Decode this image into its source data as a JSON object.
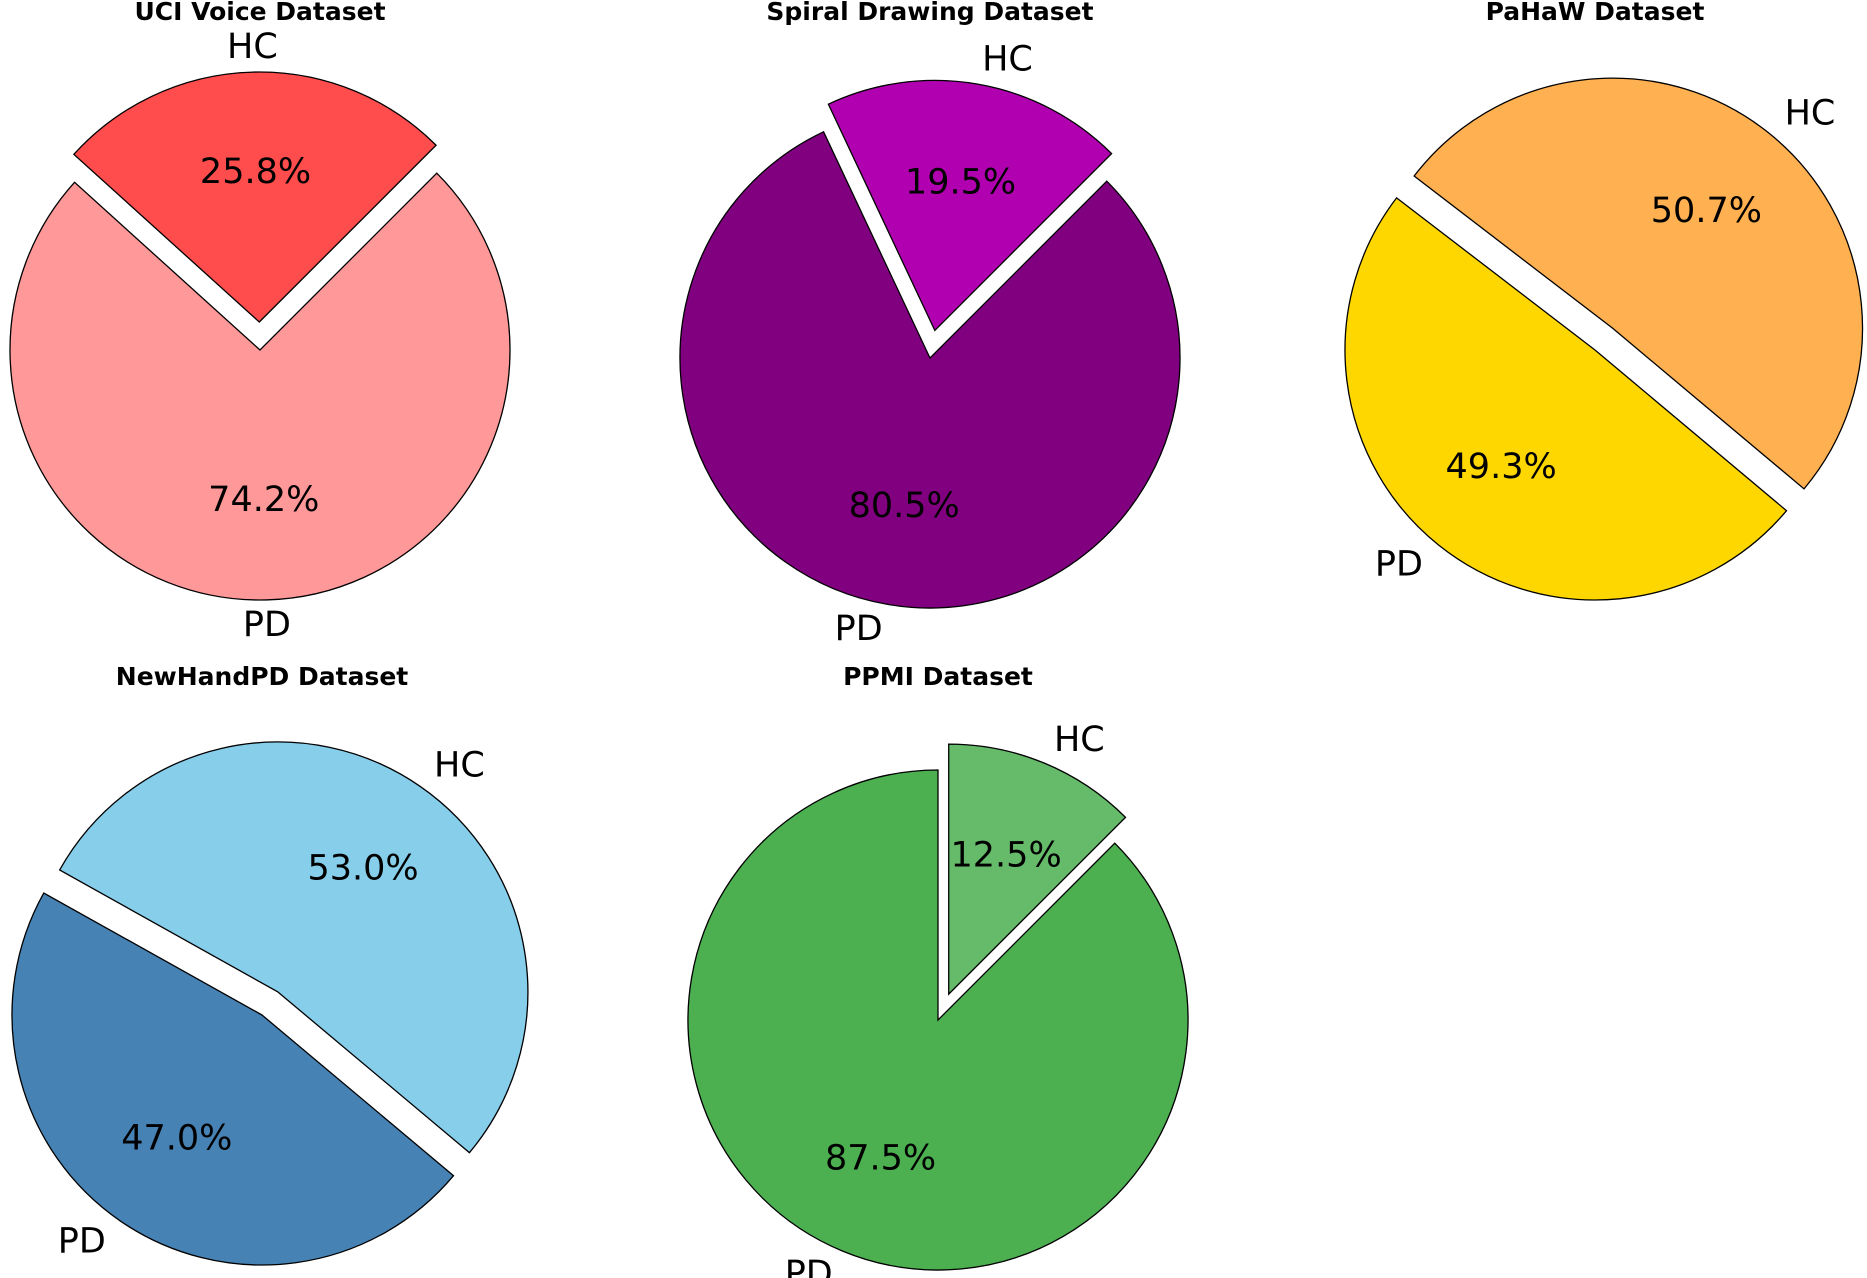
{
  "chart_data": [
    {
      "type": "pie",
      "title": "UCI Voice Dataset",
      "categories": [
        "HC",
        "PD"
      ],
      "values": [
        25.8,
        74.2
      ],
      "value_labels": [
        "25.8%",
        "74.2%"
      ],
      "colors": [
        "#ff4d4d",
        "#ff9999"
      ],
      "exploded": "HC"
    },
    {
      "type": "pie",
      "title": "Spiral Drawing Dataset",
      "categories": [
        "HC",
        "PD"
      ],
      "values": [
        19.5,
        80.5
      ],
      "value_labels": [
        "19.5%",
        "80.5%"
      ],
      "colors": [
        "#b000b0",
        "#800080"
      ],
      "exploded": "HC"
    },
    {
      "type": "pie",
      "title": "PaHaW Dataset",
      "categories": [
        "HC",
        "PD"
      ],
      "values": [
        50.7,
        49.3
      ],
      "value_labels": [
        "50.7%",
        "49.3%"
      ],
      "colors": [
        "#ffb050",
        "#ffd700"
      ],
      "exploded": "HC"
    },
    {
      "type": "pie",
      "title": "NewHandPD Dataset",
      "categories": [
        "HC",
        "PD"
      ],
      "values": [
        53.0,
        47.0
      ],
      "value_labels": [
        "53.0%",
        "47.0%"
      ],
      "colors": [
        "#87ceeb",
        "#4682b4"
      ],
      "exploded": "HC"
    },
    {
      "type": "pie",
      "title": "PPMI Dataset",
      "categories": [
        "HC",
        "PD"
      ],
      "values": [
        12.5,
        87.5
      ],
      "value_labels": [
        "12.5%",
        "87.5%"
      ],
      "colors": [
        "#66bb6a",
        "#4caf50"
      ],
      "exploded": "HC"
    }
  ]
}
